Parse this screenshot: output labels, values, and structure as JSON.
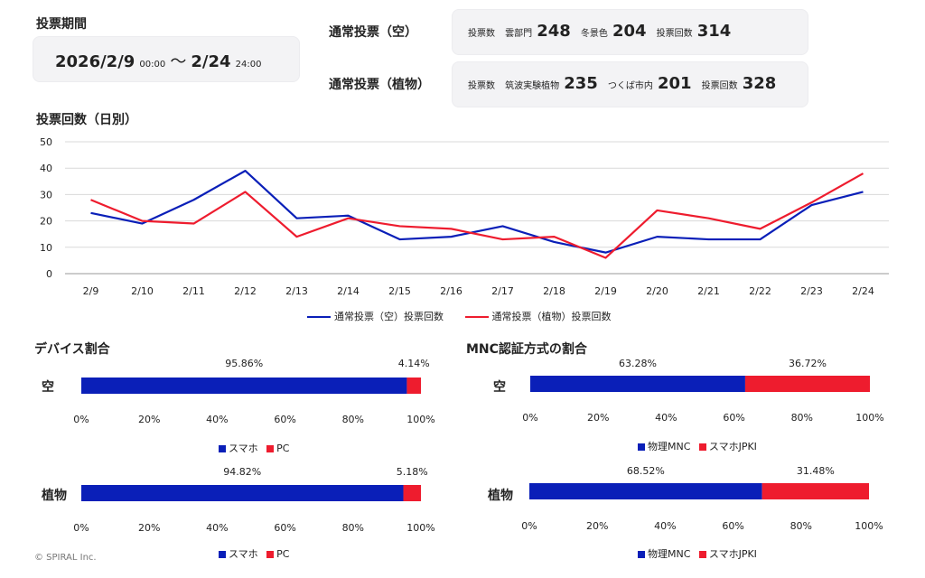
{
  "period": {
    "title": "投票期間",
    "start_date": "2026/2/9",
    "start_time": "00:00",
    "separator": "〜",
    "end_date": "2/24",
    "end_time": "24:00"
  },
  "vote_sky": {
    "title": "通常投票（空）",
    "count_label": "投票数",
    "item1_label": "雲部門",
    "item1_value": "248",
    "item2_label": "冬景色",
    "item2_value": "204",
    "total_label": "投票回数",
    "total_value": "314"
  },
  "vote_plant": {
    "title": "通常投票（植物）",
    "count_label": "投票数",
    "item1_label": "筑波実験植物",
    "item1_value": "235",
    "item2_label": "つくば市内",
    "item2_value": "201",
    "total_label": "投票回数",
    "total_value": "328"
  },
  "daily": {
    "title": "投票回数（日別）"
  },
  "device": {
    "title": "デバイス割合"
  },
  "mnc": {
    "title": "MNC認証方式の割合"
  },
  "colors": {
    "blue": "#0a1fb8",
    "red": "#ee1c2e"
  },
  "footer": "© SPIRAL Inc.",
  "chart_data": [
    {
      "id": "daily",
      "type": "line",
      "title": "投票回数（日別）",
      "categories": [
        "2/9",
        "2/10",
        "2/11",
        "2/12",
        "2/13",
        "2/14",
        "2/15",
        "2/16",
        "2/17",
        "2/18",
        "2/19",
        "2/20",
        "2/21",
        "2/22",
        "2/23",
        "2/24"
      ],
      "series": [
        {
          "name": "通常投票（空）投票回数",
          "color": "#0a1fb8",
          "values": [
            23,
            19,
            28,
            39,
            21,
            22,
            13,
            14,
            18,
            12,
            8,
            14,
            13,
            13,
            26,
            31
          ]
        },
        {
          "name": "通常投票（植物）投票回数",
          "color": "#ee1c2e",
          "values": [
            28,
            20,
            19,
            31,
            14,
            21,
            18,
            17,
            13,
            14,
            6,
            24,
            21,
            17,
            27,
            38
          ]
        }
      ],
      "ylim": [
        0,
        50
      ],
      "yticks": [
        "0",
        "10",
        "20",
        "30",
        "40",
        "50"
      ],
      "grid": true,
      "legend": "bottom"
    },
    {
      "id": "device_sky",
      "type": "bar",
      "orientation": "horizontal-stacked-100",
      "category": "空",
      "series": [
        {
          "name": "スマホ",
          "value": 95.86,
          "label": "95.86%",
          "color": "#0a1fb8"
        },
        {
          "name": "PC",
          "value": 4.14,
          "label": "4.14%",
          "color": "#ee1c2e"
        }
      ],
      "xticks": [
        "0%",
        "20%",
        "40%",
        "60%",
        "80%",
        "100%"
      ],
      "legend": "bottom"
    },
    {
      "id": "device_plant",
      "type": "bar",
      "orientation": "horizontal-stacked-100",
      "category": "植物",
      "series": [
        {
          "name": "スマホ",
          "value": 94.82,
          "label": "94.82%",
          "color": "#0a1fb8"
        },
        {
          "name": "PC",
          "value": 5.18,
          "label": "5.18%",
          "color": "#ee1c2e"
        }
      ],
      "xticks": [
        "0%",
        "20%",
        "40%",
        "60%",
        "80%",
        "100%"
      ],
      "legend": "bottom"
    },
    {
      "id": "mnc_sky",
      "type": "bar",
      "orientation": "horizontal-stacked-100",
      "category": "空",
      "series": [
        {
          "name": "物理MNC",
          "value": 63.28,
          "label": "63.28%",
          "color": "#0a1fb8"
        },
        {
          "name": "スマホJPKI",
          "value": 36.72,
          "label": "36.72%",
          "color": "#ee1c2e"
        }
      ],
      "xticks": [
        "0%",
        "20%",
        "40%",
        "60%",
        "80%",
        "100%"
      ],
      "legend": "bottom"
    },
    {
      "id": "mnc_plant",
      "type": "bar",
      "orientation": "horizontal-stacked-100",
      "category": "植物",
      "series": [
        {
          "name": "物理MNC",
          "value": 68.52,
          "label": "68.52%",
          "color": "#0a1fb8"
        },
        {
          "name": "スマホJPKI",
          "value": 31.48,
          "label": "31.48%",
          "color": "#ee1c2e"
        }
      ],
      "xticks": [
        "0%",
        "20%",
        "40%",
        "60%",
        "80%",
        "100%"
      ],
      "legend": "bottom"
    }
  ]
}
